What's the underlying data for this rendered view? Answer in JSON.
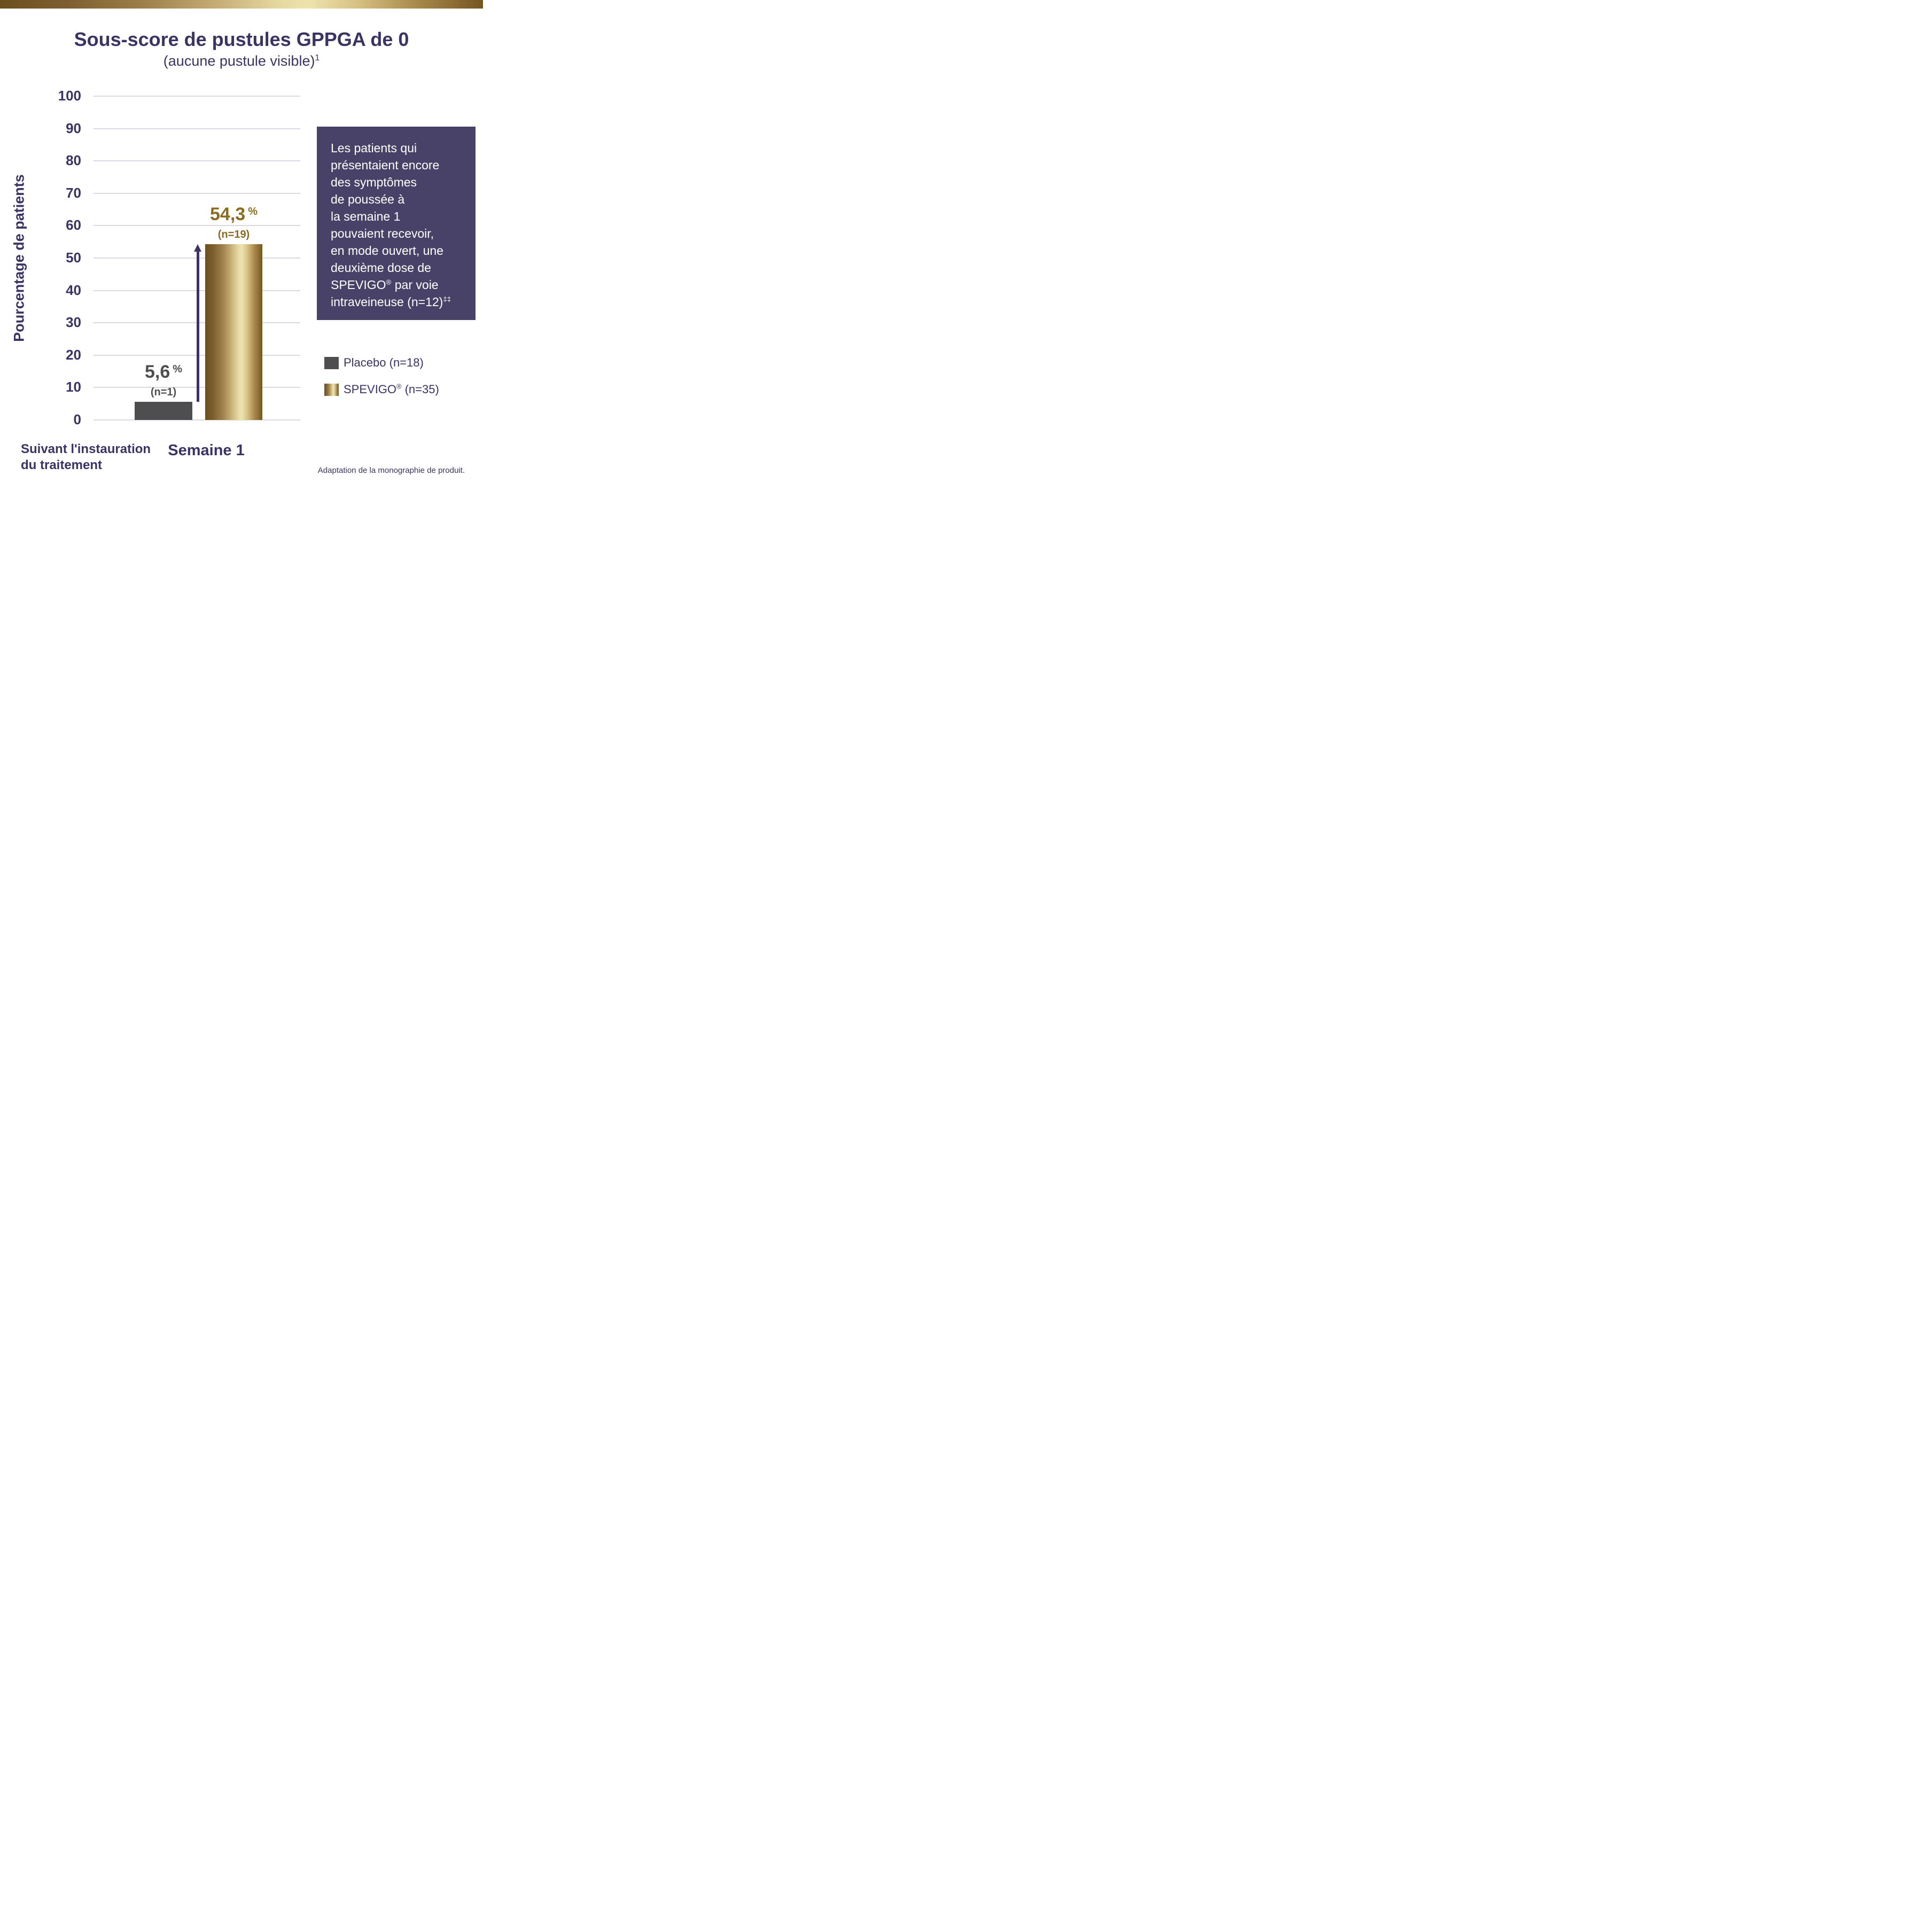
{
  "chart_data": {
    "type": "bar",
    "title": "Sous-score de pustules GPPGA de 0",
    "subtitle": "(aucune pustule visible)|1|",
    "ylabel": "Pourcentage de patients",
    "xlabel_lines": [
      "Suivant l'instauration",
      "du traitement"
    ],
    "categories": [
      "Semaine 1"
    ],
    "ylim": [
      0,
      100
    ],
    "ytick_step": 10,
    "grid": true,
    "legend_position": "right",
    "series": [
      {
        "name": "Placebo",
        "legend_label": "Placebo (n=18)",
        "value": 5.6,
        "value_label": "5,6",
        "value_unit": "%",
        "bar_annotation": "(n=1)",
        "swatch": "solid-gray"
      },
      {
        "name": "SPEVIGO",
        "legend_label": "SPEVIGO|®| (n=35)",
        "value": 54.3,
        "value_label": "54,3",
        "value_unit": "%",
        "bar_annotation": "(n=19)",
        "swatch": "gold-gradient"
      }
    ],
    "annotation_arrow": {
      "from_value": 5.6,
      "to_value": 54.3
    }
  },
  "callout": {
    "lines": [
      "Les patients qui",
      "présentaient encore",
      "des symptômes",
      "de poussée à",
      "la semaine 1",
      "pouvaient recevoir,",
      "en mode ouvert, une",
      "deuxième dose de",
      "SPEVIGO|®| par voie",
      "intraveineuse (n=12)|‡‡|"
    ]
  },
  "footer": {
    "source_note": "Adaptation de la monographie de produit."
  },
  "colors": {
    "navy": "#3B3364",
    "gray_bar": "#4E4E50",
    "gold_text": "#8A6B1F",
    "gridline": "#D9D8E3",
    "callout_bg": "#484269",
    "callout_text": "#FFFFFF",
    "gold_gradient": [
      "#6C4F1E",
      "#7E5E31",
      "#9E8049",
      "#C8B179",
      "#E6DAA1",
      "#EDE3AE",
      "#D6C183",
      "#A98A4D",
      "#765620"
    ]
  }
}
